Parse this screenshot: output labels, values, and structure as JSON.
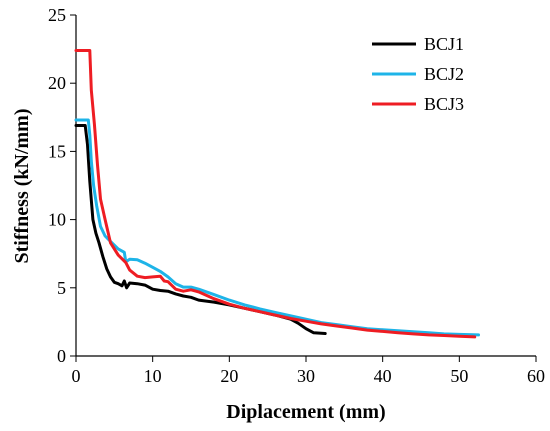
{
  "chart_data": {
    "type": "line",
    "xlabel": "Diplacement (mm)",
    "ylabel": "Stiffness (kN/mm)",
    "xlim": [
      0,
      60
    ],
    "ylim": [
      0,
      25
    ],
    "xticks": [
      0,
      10,
      20,
      30,
      40,
      50,
      60
    ],
    "yticks": [
      0,
      5,
      10,
      15,
      20,
      25
    ],
    "grid": false,
    "legend_position": "top-right",
    "series": [
      {
        "name": "BCJ1",
        "color": "#000000",
        "points": [
          [
            0,
            16.9
          ],
          [
            1.2,
            16.9
          ],
          [
            1.5,
            15.5
          ],
          [
            1.8,
            12.8
          ],
          [
            2.2,
            10.0
          ],
          [
            2.6,
            9.0
          ],
          [
            3.0,
            8.3
          ],
          [
            3.5,
            7.3
          ],
          [
            4.0,
            6.4
          ],
          [
            4.5,
            5.8
          ],
          [
            5.0,
            5.4
          ],
          [
            5.5,
            5.3
          ],
          [
            6.0,
            5.15
          ],
          [
            6.3,
            5.5
          ],
          [
            6.6,
            5.0
          ],
          [
            7,
            5.35
          ],
          [
            8,
            5.3
          ],
          [
            9,
            5.2
          ],
          [
            10,
            4.9
          ],
          [
            11,
            4.8
          ],
          [
            12,
            4.75
          ],
          [
            13,
            4.55
          ],
          [
            14,
            4.4
          ],
          [
            15,
            4.3
          ],
          [
            16,
            4.1
          ],
          [
            18,
            3.95
          ],
          [
            20,
            3.75
          ],
          [
            22,
            3.5
          ],
          [
            24,
            3.25
          ],
          [
            26,
            3.0
          ],
          [
            28,
            2.7
          ],
          [
            29,
            2.4
          ],
          [
            30,
            2.0
          ],
          [
            31,
            1.7
          ],
          [
            32.5,
            1.65
          ]
        ]
      },
      {
        "name": "BCJ2",
        "color": "#1EB4E8",
        "points": [
          [
            0,
            17.3
          ],
          [
            1.6,
            17.3
          ],
          [
            1.8,
            16.2
          ],
          [
            2.0,
            14.3
          ],
          [
            2.3,
            12.5
          ],
          [
            2.7,
            11.0
          ],
          [
            3.2,
            9.5
          ],
          [
            3.8,
            8.8
          ],
          [
            4.5,
            8.4
          ],
          [
            5.5,
            7.85
          ],
          [
            6.3,
            7.6
          ],
          [
            6.5,
            6.9
          ],
          [
            7,
            7.1
          ],
          [
            8,
            7.05
          ],
          [
            9,
            6.8
          ],
          [
            10,
            6.5
          ],
          [
            11,
            6.2
          ],
          [
            12,
            5.8
          ],
          [
            13,
            5.3
          ],
          [
            14,
            5.05
          ],
          [
            15,
            5.05
          ],
          [
            16,
            4.9
          ],
          [
            18,
            4.5
          ],
          [
            20,
            4.1
          ],
          [
            22,
            3.75
          ],
          [
            24,
            3.45
          ],
          [
            26,
            3.2
          ],
          [
            28,
            2.95
          ],
          [
            30,
            2.7
          ],
          [
            32,
            2.45
          ],
          [
            34,
            2.3
          ],
          [
            36,
            2.15
          ],
          [
            38,
            2.0
          ],
          [
            40,
            1.92
          ],
          [
            42,
            1.85
          ],
          [
            44,
            1.78
          ],
          [
            46,
            1.7
          ],
          [
            48,
            1.62
          ],
          [
            50,
            1.58
          ],
          [
            52.5,
            1.55
          ]
        ]
      },
      {
        "name": "BCJ3",
        "color": "#EE1D23",
        "points": [
          [
            0,
            22.4
          ],
          [
            1.8,
            22.4
          ],
          [
            2.0,
            19.5
          ],
          [
            2.4,
            17.0
          ],
          [
            2.8,
            14.0
          ],
          [
            3.2,
            11.5
          ],
          [
            3.8,
            10.0
          ],
          [
            4.5,
            8.3
          ],
          [
            5.5,
            7.4
          ],
          [
            6.5,
            6.85
          ],
          [
            7,
            6.3
          ],
          [
            8,
            5.85
          ],
          [
            9,
            5.75
          ],
          [
            10,
            5.8
          ],
          [
            11,
            5.85
          ],
          [
            11.5,
            5.5
          ],
          [
            12,
            5.45
          ],
          [
            13,
            4.9
          ],
          [
            14,
            4.75
          ],
          [
            15,
            4.85
          ],
          [
            16,
            4.7
          ],
          [
            18,
            4.2
          ],
          [
            20,
            3.8
          ],
          [
            22,
            3.5
          ],
          [
            24,
            3.25
          ],
          [
            26,
            3.0
          ],
          [
            28,
            2.75
          ],
          [
            30,
            2.55
          ],
          [
            32,
            2.35
          ],
          [
            34,
            2.2
          ],
          [
            36,
            2.05
          ],
          [
            38,
            1.9
          ],
          [
            40,
            1.8
          ],
          [
            42,
            1.7
          ],
          [
            44,
            1.62
          ],
          [
            46,
            1.55
          ],
          [
            48,
            1.5
          ],
          [
            50,
            1.45
          ],
          [
            52,
            1.4
          ]
        ]
      }
    ]
  }
}
